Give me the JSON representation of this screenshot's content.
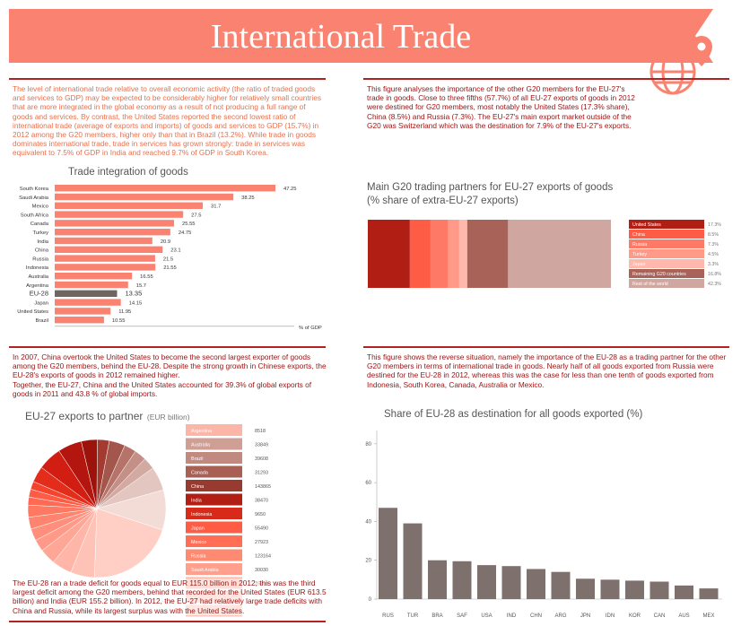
{
  "title": "International Trade",
  "colors": {
    "banner": "#fa8270",
    "rule": "#b22222",
    "orange_text": "#e8704e",
    "red_text": "#9b1010",
    "bar": "#fa8270",
    "bar_eu": "#6f6563",
    "brown_bar": "#7d706d"
  },
  "icon": "globe-location-pin-icon",
  "para1": "The level of international trade relative to overall economic activity (the ratio of traded goods and services to GDP) may be expected to be considerably higher for relatively small countries that are more integrated in the global economy as a result of not producing a full range of goods and services. By contrast, the United States reported the second lowest ratio of international trade (average of exports and imports) of goods and services to GDP (15.7%) in 2012 among the G20 members, higher only than that in Brazil (13.2%). While trade in goods dominates international trade, trade in services has grown strongly: trade in services was equivalent to 7.5% of GDP in India and reached 9.7% of GDP in South Korea.",
  "para2": "This figure analyses the importance of the other G20 members for the EU-27's trade in goods. Close to three fifths (57.7%) of all EU-27 exports of goods in 2012 were destined for G20 members, most notably the United States (17.3% share), China (8.5%) and Russia (7.3%). The EU-27's main export market outside of the G20 was Switzerland which was the destination for 7.9% of the EU-27's exports.",
  "para3": "In 2007, China overtook the United States to become the second largest exporter of goods among the G20 members, behind the EU-28. Despite the strong growth in Chinese exports, the EU-28's exports of goods in 2012 remained higher.\nTogether, the EU-27, China and the United States accounted for 39.3% of global exports of goods in 2011 and 43.8 % of global imports.",
  "para4": "This figure shows the reverse situation, namely the importance of the EU-28 as a trading partner for the other G20 members in terms of international trade in goods. Nearly half of all goods exported from Russia were destined for the EU-28 in 2012, whereas this was the case for less than one tenth of goods exported from Indonesia, South Korea, Canada, Australia or Mexico.",
  "para5": "The EU-28 ran a trade deficit for goods equal to EUR 115.0 billion in 2012; this was the third largest deficit among the G20 members, behind that recorded for the United States (EUR 613.5 billion) and India (EUR 155.2 billion). In 2012, the EU-27 had relatively large trade deficits with China and Russia, while its largest surplus was with the United States.",
  "chart_data": [
    {
      "type": "bar",
      "orientation": "horizontal",
      "title": "Trade integration of goods",
      "xlabel": "% of GDP",
      "categories": [
        "South Korea",
        "Saudi Arabia",
        "Mexico",
        "South Africa",
        "Canada",
        "Turkey",
        "India",
        "China",
        "Russia",
        "Indonesia",
        "Australia",
        "Argentina",
        "EU-28",
        "Japan",
        "United States",
        "Brazil"
      ],
      "values": [
        47.25,
        38.25,
        31.7,
        27.5,
        25.55,
        24.75,
        20.9,
        23.1,
        21.5,
        21.55,
        16.55,
        15.7,
        13.35,
        14.15,
        11.95,
        10.55
      ],
      "value_labels": [
        "47.25",
        "38.25",
        "31.7",
        "27.5",
        "25.55",
        "24.75",
        "20.9",
        "23.1",
        "21.5",
        "21.55",
        "16.55",
        "15.7",
        "13.35",
        "14.15",
        "11.95",
        "10.55"
      ],
      "highlight": "EU-28"
    },
    {
      "type": "bar",
      "orientation": "stacked-horizontal",
      "title": "Main G20 trading partners for EU-27 exports of goods",
      "subtitle": "(% share of extra-EU-27 exports)",
      "categories": [
        "United States",
        "China",
        "Russia",
        "Turkey",
        "Japan",
        "Remaining G20 countries",
        "Rest of the world"
      ],
      "values": [
        17.3,
        8.5,
        7.3,
        4.5,
        3.3,
        16.8,
        42.3
      ],
      "value_labels": [
        "17.3%",
        "8.5%",
        "7.3%",
        "4.5%",
        "3.3%",
        "16.8%",
        "42.3%"
      ],
      "colors": [
        "#b01e14",
        "#ff5c45",
        "#ff7a66",
        "#ff9a88",
        "#ffb8ab",
        "#a86257",
        "#cfa7a0"
      ]
    },
    {
      "type": "pie",
      "title": "EU-27 exports to partner",
      "unit": "(EUR billion)",
      "categories": [
        "Argentina",
        "Australia",
        "Brazil",
        "Canada",
        "China",
        "India",
        "Indonesia",
        "Japan",
        "Mexico",
        "Russia",
        "Saudi Arabia",
        "South Africa"
      ],
      "values": [
        8518,
        33849,
        39608,
        31293,
        143865,
        38470,
        9650,
        55490,
        27923,
        123164,
        30030,
        25669
      ],
      "value_labels": [
        "8518",
        "33849",
        "39608",
        "31293",
        "143865",
        "38470",
        "9650",
        "55490",
        "27923",
        "123164",
        "30030",
        "25669"
      ],
      "colors": [
        "#fbb6a8",
        "#cf9e95",
        "#c08a80",
        "#a86055",
        "#973b31",
        "#b01e14",
        "#d72a18",
        "#ff5c45",
        "#ff6e55",
        "#ff8a72",
        "#ff9f8c",
        "#ffb6a6"
      ],
      "slice_values": [
        22,
        6,
        5,
        4,
        3,
        3,
        3,
        3,
        2,
        2,
        2,
        4,
        6,
        6,
        4,
        3,
        4,
        3,
        3,
        3,
        6,
        10
      ],
      "slice_colors": [
        "#ffcfc6",
        "#ffc2b7",
        "#ffb5a8",
        "#ffa796",
        "#ff9a88",
        "#ff8f7c",
        "#ff8470",
        "#ff7862",
        "#ff6a55",
        "#ff5c45",
        "#f5432e",
        "#e32c1a",
        "#d21e12",
        "#b3160e",
        "#9c130c",
        "#a33b30",
        "#a3564b",
        "#b57369",
        "#c48f86",
        "#d3aaa2",
        "#e3c6c0",
        "#f4dcd6"
      ]
    },
    {
      "type": "bar",
      "title": "Share of EU-28 as destination for all goods exported (%)",
      "categories": [
        "RUS",
        "TUR",
        "BRA",
        "SAF",
        "USA",
        "IND",
        "CHN",
        "ARG",
        "JPN",
        "IDN",
        "KOR",
        "CAN",
        "AUS",
        "MEX"
      ],
      "values": [
        47,
        39,
        20,
        19.5,
        17.5,
        17,
        15.5,
        14,
        10.5,
        10,
        9.5,
        9,
        7,
        5.5
      ],
      "ylim": [
        0,
        85
      ],
      "yticks": [
        0,
        20,
        40,
        60,
        80
      ],
      "ytick_labels": [
        "0",
        "20",
        "40",
        "60",
        "80"
      ]
    }
  ]
}
